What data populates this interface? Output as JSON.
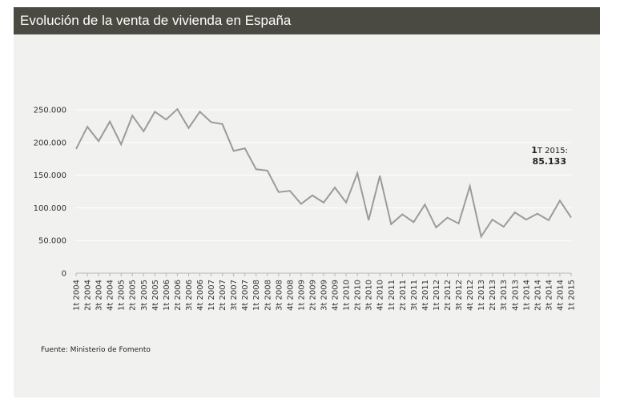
{
  "title": "Evolución de la venta de vivienda en España",
  "source": "Fuente: Ministerio de Fomento",
  "chart_data": {
    "type": "line",
    "title": "Evolución de la venta de vivienda en España",
    "xlabel": "",
    "ylabel": "",
    "ylim": [
      0,
      250000
    ],
    "yticks": [
      0,
      50000,
      100000,
      150000,
      200000,
      250000
    ],
    "ytick_labels": [
      "0",
      "50.000",
      "100.000",
      "150.000",
      "200.000",
      "250.000"
    ],
    "grid": true,
    "categories": [
      "1t 2004",
      "2t 2004",
      "3t 2004",
      "4t 2004",
      "1t 2005",
      "2t 2005",
      "3t 2005",
      "4t 2005",
      "1t 2006",
      "2t 2006",
      "3t 2006",
      "4t 2006",
      "1t 2007",
      "2t 2007",
      "3t 2007",
      "4t 2007",
      "1t 2008",
      "2t 2008",
      "3t 2008",
      "4t 2008",
      "1t 2009",
      "2t 2009",
      "3t 2009",
      "4t 2009",
      "1t 2010",
      "2t 2010",
      "3t 2010",
      "4t 2010",
      "1t 2011",
      "2t 2011",
      "3t 2011",
      "4t 2011",
      "1t 2012",
      "2t 2012",
      "3t 2012",
      "4t 2012",
      "1t 2013",
      "2t 2013",
      "3t 2013",
      "4t 2013",
      "1t 2014",
      "2t 2014",
      "3t 2014",
      "4t 2014",
      "1t 2015"
    ],
    "series": [
      {
        "name": "Venta de vivienda",
        "color": "#9b9b9b",
        "values": [
          190000,
          224000,
          202000,
          232000,
          197000,
          241000,
          217000,
          247000,
          235000,
          251000,
          222000,
          247000,
          231000,
          228000,
          187000,
          191000,
          159000,
          157000,
          124000,
          126000,
          106000,
          119000,
          108000,
          131000,
          108000,
          153000,
          81000,
          149000,
          75000,
          90000,
          78000,
          105000,
          70000,
          85000,
          76000,
          133000,
          56000,
          82000,
          71000,
          93000,
          82000,
          91000,
          81000,
          111000,
          85133
        ]
      }
    ],
    "annotation": {
      "label_bold": "1",
      "label_rest": "T 2015:",
      "value": "85.133"
    }
  }
}
